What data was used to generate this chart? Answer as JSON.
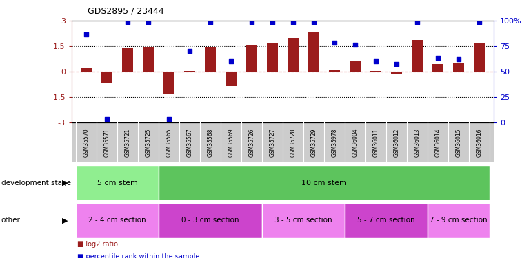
{
  "title": "GDS2895 / 23444",
  "samples": [
    "GSM35570",
    "GSM35571",
    "GSM35721",
    "GSM35725",
    "GSM35565",
    "GSM35567",
    "GSM35568",
    "GSM35569",
    "GSM35726",
    "GSM35727",
    "GSM35728",
    "GSM35729",
    "GSM35978",
    "GSM36004",
    "GSM36011",
    "GSM36012",
    "GSM36013",
    "GSM36014",
    "GSM36015",
    "GSM36016"
  ],
  "log2_ratio": [
    0.2,
    -0.7,
    1.4,
    1.45,
    -1.3,
    0.05,
    1.45,
    -0.85,
    1.6,
    1.7,
    2.0,
    2.3,
    0.1,
    0.6,
    0.05,
    -0.1,
    1.85,
    0.45,
    0.5,
    1.7
  ],
  "percentile_rank_mapped": [
    2.2,
    -2.8,
    2.9,
    2.9,
    -2.8,
    1.2,
    2.9,
    0.6,
    2.9,
    2.9,
    2.9,
    2.9,
    1.7,
    1.6,
    0.6,
    0.45,
    2.9,
    0.8,
    0.75,
    2.9
  ],
  "ylim": [
    -3,
    3
  ],
  "yticks_left": [
    -3,
    -1.5,
    0,
    1.5,
    3
  ],
  "yticks_right_labels": [
    "0",
    "25",
    "50",
    "75",
    "100%"
  ],
  "bar_color": "#9B1C1C",
  "scatter_color": "#0000CC",
  "hline_color": "#CC0000",
  "dotline_color": "black",
  "bg_color": "#FFFFFF",
  "tick_label_bg": "#CCCCCC",
  "development_stage_label": "development stage",
  "other_label": "other",
  "dev_groups": [
    {
      "label": "5 cm stem",
      "start": 0,
      "end": 3,
      "color": "#90EE90"
    },
    {
      "label": "10 cm stem",
      "start": 4,
      "end": 19,
      "color": "#5DC45D"
    }
  ],
  "other_groups": [
    {
      "label": "2 - 4 cm section",
      "start": 0,
      "end": 3,
      "color": "#EE82EE"
    },
    {
      "label": "0 - 3 cm section",
      "start": 4,
      "end": 8,
      "color": "#CC44CC"
    },
    {
      "label": "3 - 5 cm section",
      "start": 9,
      "end": 12,
      "color": "#EE82EE"
    },
    {
      "label": "5 - 7 cm section",
      "start": 13,
      "end": 16,
      "color": "#CC44CC"
    },
    {
      "label": "7 - 9 cm section",
      "start": 17,
      "end": 19,
      "color": "#EE82EE"
    }
  ],
  "legend_items": [
    {
      "label": "log2 ratio",
      "color": "#9B1C1C"
    },
    {
      "label": "percentile rank within the sample",
      "color": "#0000CC"
    }
  ]
}
